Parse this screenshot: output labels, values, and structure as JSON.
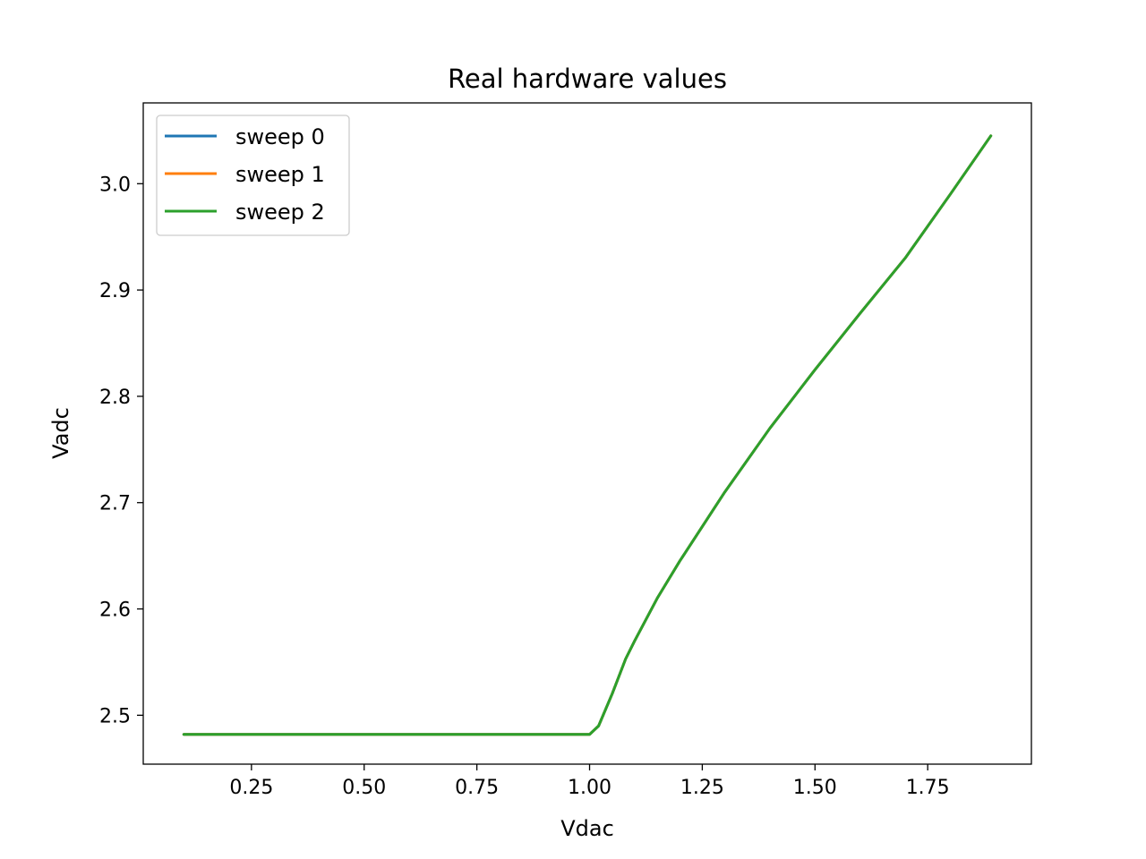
{
  "chart_data": {
    "type": "line",
    "title": "Real hardware values",
    "xlabel": "Vdac",
    "ylabel": "Vadc",
    "xlim": [
      0.01,
      1.98
    ],
    "ylim": [
      2.454,
      3.076
    ],
    "xticks": [
      "0.25",
      "0.50",
      "0.75",
      "1.00",
      "1.25",
      "1.50",
      "1.75"
    ],
    "yticks": [
      "2.5",
      "2.6",
      "2.7",
      "2.8",
      "2.9",
      "3.0"
    ],
    "grid": false,
    "legend_position": "top-left",
    "series": [
      {
        "name": "sweep 0",
        "color": "#1f77b4",
        "x": [
          0.1,
          0.5,
          1.0,
          1.02,
          1.05,
          1.08,
          1.1,
          1.15,
          1.2,
          1.3,
          1.4,
          1.5,
          1.6,
          1.7,
          1.8,
          1.89
        ],
        "y": [
          2.482,
          2.482,
          2.482,
          2.49,
          2.52,
          2.553,
          2.57,
          2.61,
          2.645,
          2.71,
          2.77,
          2.825,
          2.878,
          2.93,
          2.99,
          3.045
        ]
      },
      {
        "name": "sweep 1",
        "color": "#ff7f0e",
        "x": [
          0.1,
          0.5,
          1.0,
          1.02,
          1.05,
          1.08,
          1.1,
          1.15,
          1.2,
          1.3,
          1.4,
          1.5,
          1.6,
          1.7,
          1.8,
          1.89
        ],
        "y": [
          2.482,
          2.482,
          2.482,
          2.49,
          2.52,
          2.553,
          2.57,
          2.61,
          2.645,
          2.71,
          2.77,
          2.825,
          2.878,
          2.93,
          2.99,
          3.045
        ]
      },
      {
        "name": "sweep 2",
        "color": "#2ca02c",
        "x": [
          0.1,
          0.5,
          1.0,
          1.02,
          1.05,
          1.08,
          1.1,
          1.15,
          1.2,
          1.3,
          1.4,
          1.5,
          1.6,
          1.7,
          1.8,
          1.89
        ],
        "y": [
          2.482,
          2.482,
          2.482,
          2.49,
          2.52,
          2.553,
          2.57,
          2.61,
          2.645,
          2.71,
          2.77,
          2.825,
          2.878,
          2.93,
          2.99,
          3.045
        ]
      }
    ]
  }
}
